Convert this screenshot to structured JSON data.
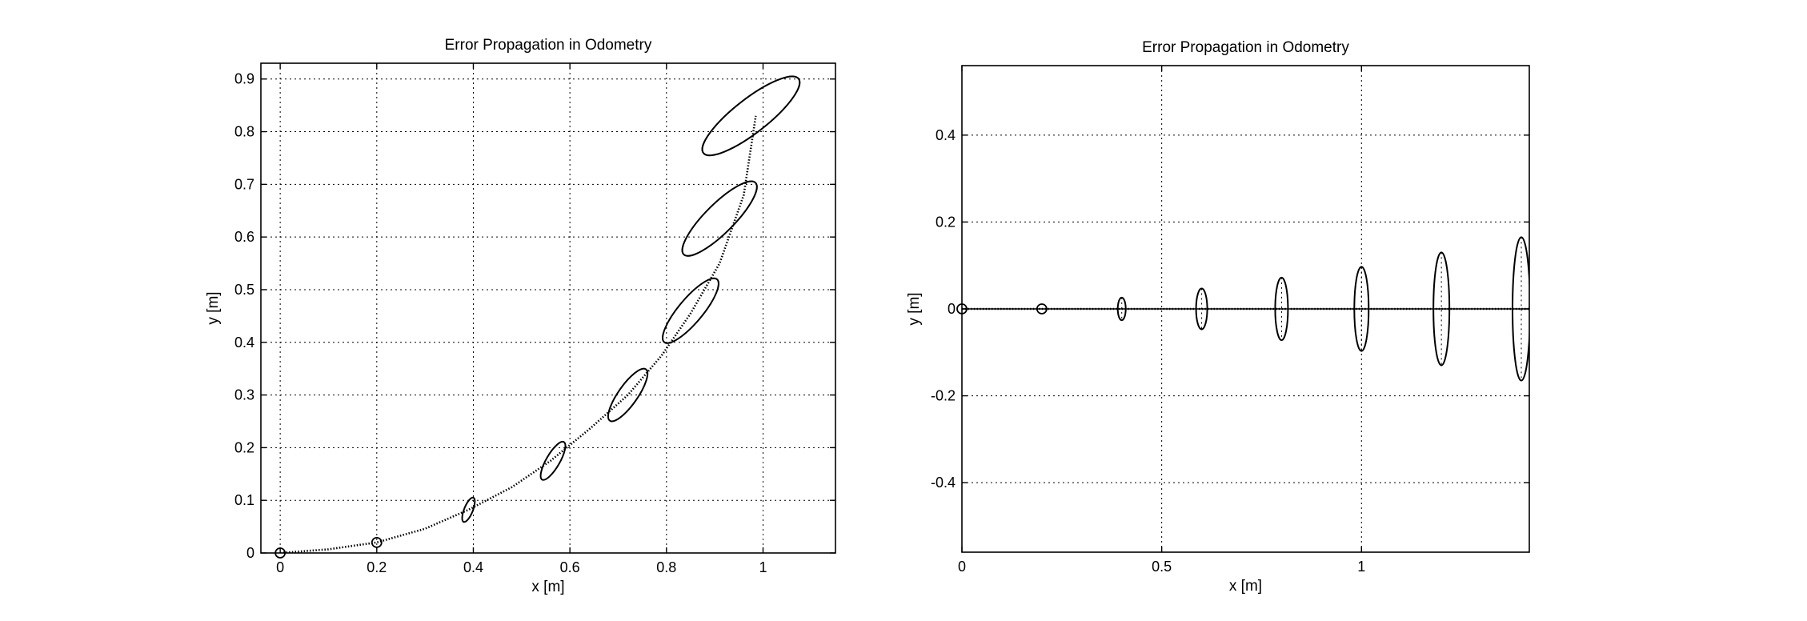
{
  "chart_data": [
    {
      "type": "line",
      "title": "Error Propagation in Odometry",
      "xlabel": "x [m]",
      "ylabel": "y [m]",
      "xlim": [
        -0.04,
        1.15
      ],
      "ylim": [
        0,
        0.93
      ],
      "xticks": [
        0,
        0.2,
        0.4,
        0.6,
        0.8,
        1
      ],
      "xtick_labels": [
        "0",
        "0.2",
        "0.4",
        "0.6",
        "0.8",
        "1"
      ],
      "yticks": [
        0,
        0.1,
        0.2,
        0.3,
        0.4,
        0.5,
        0.6,
        0.7,
        0.8,
        0.9
      ],
      "ytick_labels": [
        "0",
        "0.1",
        "0.2",
        "0.3",
        "0.4",
        "0.5",
        "0.6",
        "0.7",
        "0.8",
        "0.9"
      ],
      "grid": true,
      "trajectory": {
        "x": [
          0,
          0.1,
          0.2,
          0.3,
          0.39,
          0.48,
          0.56,
          0.64,
          0.72,
          0.79,
          0.85,
          0.91,
          0.96,
          0.985
        ],
        "y": [
          0,
          0.007,
          0.02,
          0.046,
          0.082,
          0.125,
          0.175,
          0.235,
          0.3,
          0.375,
          0.455,
          0.55,
          0.68,
          0.83
        ]
      },
      "start_markers": [
        {
          "x": 0,
          "y": 0
        },
        {
          "x": 0.2,
          "y": 0.02
        }
      ],
      "error_ellipses": [
        {
          "cx": 0.39,
          "cy": 0.082,
          "a": 0.027,
          "b": 0.009,
          "angle_deg": 68
        },
        {
          "cx": 0.565,
          "cy": 0.175,
          "a": 0.045,
          "b": 0.014,
          "angle_deg": 60
        },
        {
          "cx": 0.72,
          "cy": 0.3,
          "a": 0.065,
          "b": 0.02,
          "angle_deg": 55
        },
        {
          "cx": 0.85,
          "cy": 0.46,
          "a": 0.085,
          "b": 0.025,
          "angle_deg": 50
        },
        {
          "cx": 0.91,
          "cy": 0.635,
          "a": 0.105,
          "b": 0.03,
          "angle_deg": 45
        },
        {
          "cx": 0.975,
          "cy": 0.83,
          "a": 0.125,
          "b": 0.035,
          "angle_deg": 38
        }
      ]
    },
    {
      "type": "line",
      "title": "Error Propagation in Odometry",
      "xlabel": "x [m]",
      "ylabel": "y [m]",
      "xlim": [
        0,
        1.42
      ],
      "ylim": [
        -0.56,
        0.56
      ],
      "xticks": [
        0,
        0.5,
        1
      ],
      "xtick_labels": [
        "0",
        "0.5",
        "1"
      ],
      "yticks": [
        -0.4,
        -0.2,
        0,
        0.2,
        0.4
      ],
      "ytick_labels": [
        "-0.4",
        "-0.2",
        "0",
        "0.2",
        "0.4"
      ],
      "grid": true,
      "trajectory": {
        "x": [
          0,
          1.42
        ],
        "y": [
          0,
          0
        ]
      },
      "start_markers": [
        {
          "x": 0,
          "y": 0
        },
        {
          "x": 0.2,
          "y": 0
        }
      ],
      "error_ellipses": [
        {
          "cx": 0.4,
          "cy": 0,
          "a": 0.01,
          "b": 0.026
        },
        {
          "cx": 0.6,
          "cy": 0,
          "a": 0.014,
          "b": 0.047
        },
        {
          "cx": 0.8,
          "cy": 0,
          "a": 0.016,
          "b": 0.072
        },
        {
          "cx": 1.0,
          "cy": 0,
          "a": 0.018,
          "b": 0.097
        },
        {
          "cx": 1.2,
          "cy": 0,
          "a": 0.02,
          "b": 0.13
        },
        {
          "cx": 1.4,
          "cy": 0,
          "a": 0.022,
          "b": 0.165
        }
      ]
    }
  ]
}
